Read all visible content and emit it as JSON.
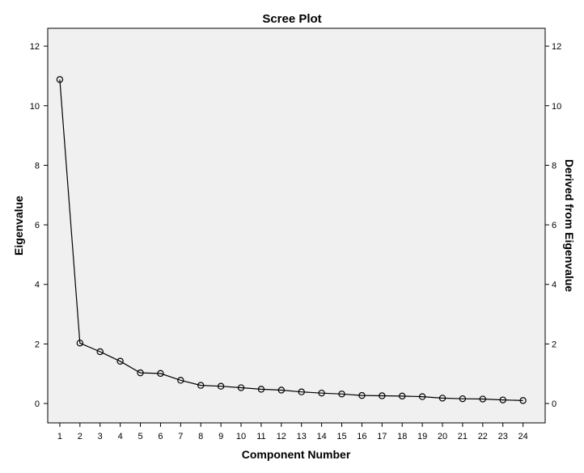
{
  "chart_data": {
    "type": "line",
    "title": "Scree Plot",
    "xlabel": "Component Number",
    "ylabel": "Eigenvalue",
    "y2label": "Derived from Eigenvalue",
    "x": [
      1,
      2,
      3,
      4,
      5,
      6,
      7,
      8,
      9,
      10,
      11,
      12,
      13,
      14,
      15,
      16,
      17,
      18,
      19,
      20,
      21,
      22,
      23,
      24
    ],
    "x_tick_labels": [
      "1",
      "2",
      "3",
      "4",
      "5",
      "6",
      "7",
      "8",
      "9",
      "10",
      "11",
      "12",
      "13",
      "14",
      "15",
      "16",
      "17",
      "18",
      "19",
      "20",
      "21",
      "22",
      "23",
      "24"
    ],
    "y_ticks": [
      0,
      2,
      4,
      6,
      8,
      10,
      12
    ],
    "y_tick_labels": [
      "0",
      "2",
      "4",
      "6",
      "8",
      "10",
      "12"
    ],
    "ylim": [
      -0.65,
      12.6
    ],
    "xlim": [
      0.4,
      25.1
    ],
    "series": [
      {
        "values": [
          10.88,
          2.03,
          1.74,
          1.42,
          1.03,
          1.01,
          0.78,
          0.61,
          0.58,
          0.53,
          0.48,
          0.45,
          0.39,
          0.35,
          0.32,
          0.27,
          0.26,
          0.25,
          0.23,
          0.18,
          0.16,
          0.15,
          0.12,
          0.1
        ],
        "color": "#000000",
        "marker": "open-circle"
      }
    ],
    "plot_background": "#f0f0f0",
    "grid": false,
    "legend": "none"
  }
}
